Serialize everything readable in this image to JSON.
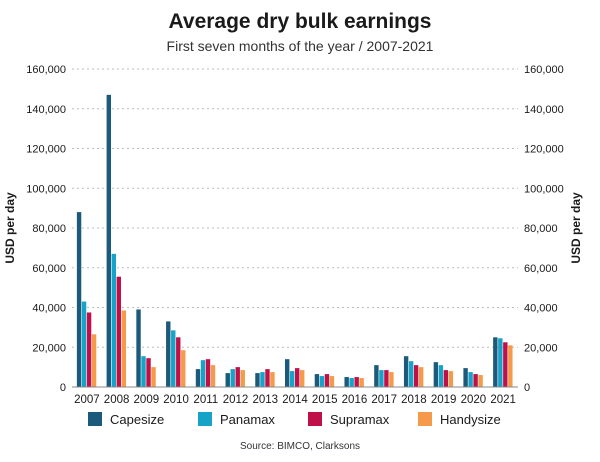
{
  "title": "Average dry bulk earnings",
  "subtitle": "First seven months of the year / 2007-2021",
  "source": "Source: BIMCO, Clarksons",
  "chart_data": {
    "type": "bar",
    "ylabel": "USD per day",
    "ylabel_right": "USD per day",
    "ylim": [
      0,
      160000
    ],
    "yticks": [
      0,
      20000,
      40000,
      60000,
      80000,
      100000,
      120000,
      140000,
      160000
    ],
    "ytick_labels": [
      "0",
      "20,000",
      "40,000",
      "60,000",
      "80,000",
      "100,000",
      "120,000",
      "140,000",
      "160,000"
    ],
    "grid": "horizontal dotted",
    "legend_position": "bottom",
    "categories": [
      "2007",
      "2008",
      "2009",
      "2010",
      "2011",
      "2012",
      "2013",
      "2014",
      "2015",
      "2016",
      "2017",
      "2018",
      "2019",
      "2020",
      "2021"
    ],
    "series": [
      {
        "name": "Capesize",
        "color": "#1b5a7a",
        "values": [
          88000,
          147000,
          39000,
          33000,
          9000,
          7000,
          7000,
          14000,
          6500,
          5000,
          11000,
          15500,
          12500,
          9500,
          25000
        ]
      },
      {
        "name": "Panamax",
        "color": "#17a2c8",
        "values": [
          43000,
          67000,
          15500,
          28500,
          13500,
          9000,
          7500,
          8000,
          5500,
          4500,
          8500,
          13000,
          11000,
          7500,
          24500
        ]
      },
      {
        "name": "Supramax",
        "color": "#c0104a",
        "values": [
          37500,
          55500,
          14500,
          25000,
          14000,
          10000,
          9000,
          9500,
          6500,
          5000,
          8500,
          11000,
          8500,
          6500,
          22500
        ]
      },
      {
        "name": "Handysize",
        "color": "#f59a4a",
        "values": [
          26500,
          38500,
          10000,
          18500,
          11000,
          8500,
          7500,
          8500,
          5500,
          4500,
          7500,
          10000,
          8000,
          6000,
          21000
        ]
      }
    ]
  }
}
